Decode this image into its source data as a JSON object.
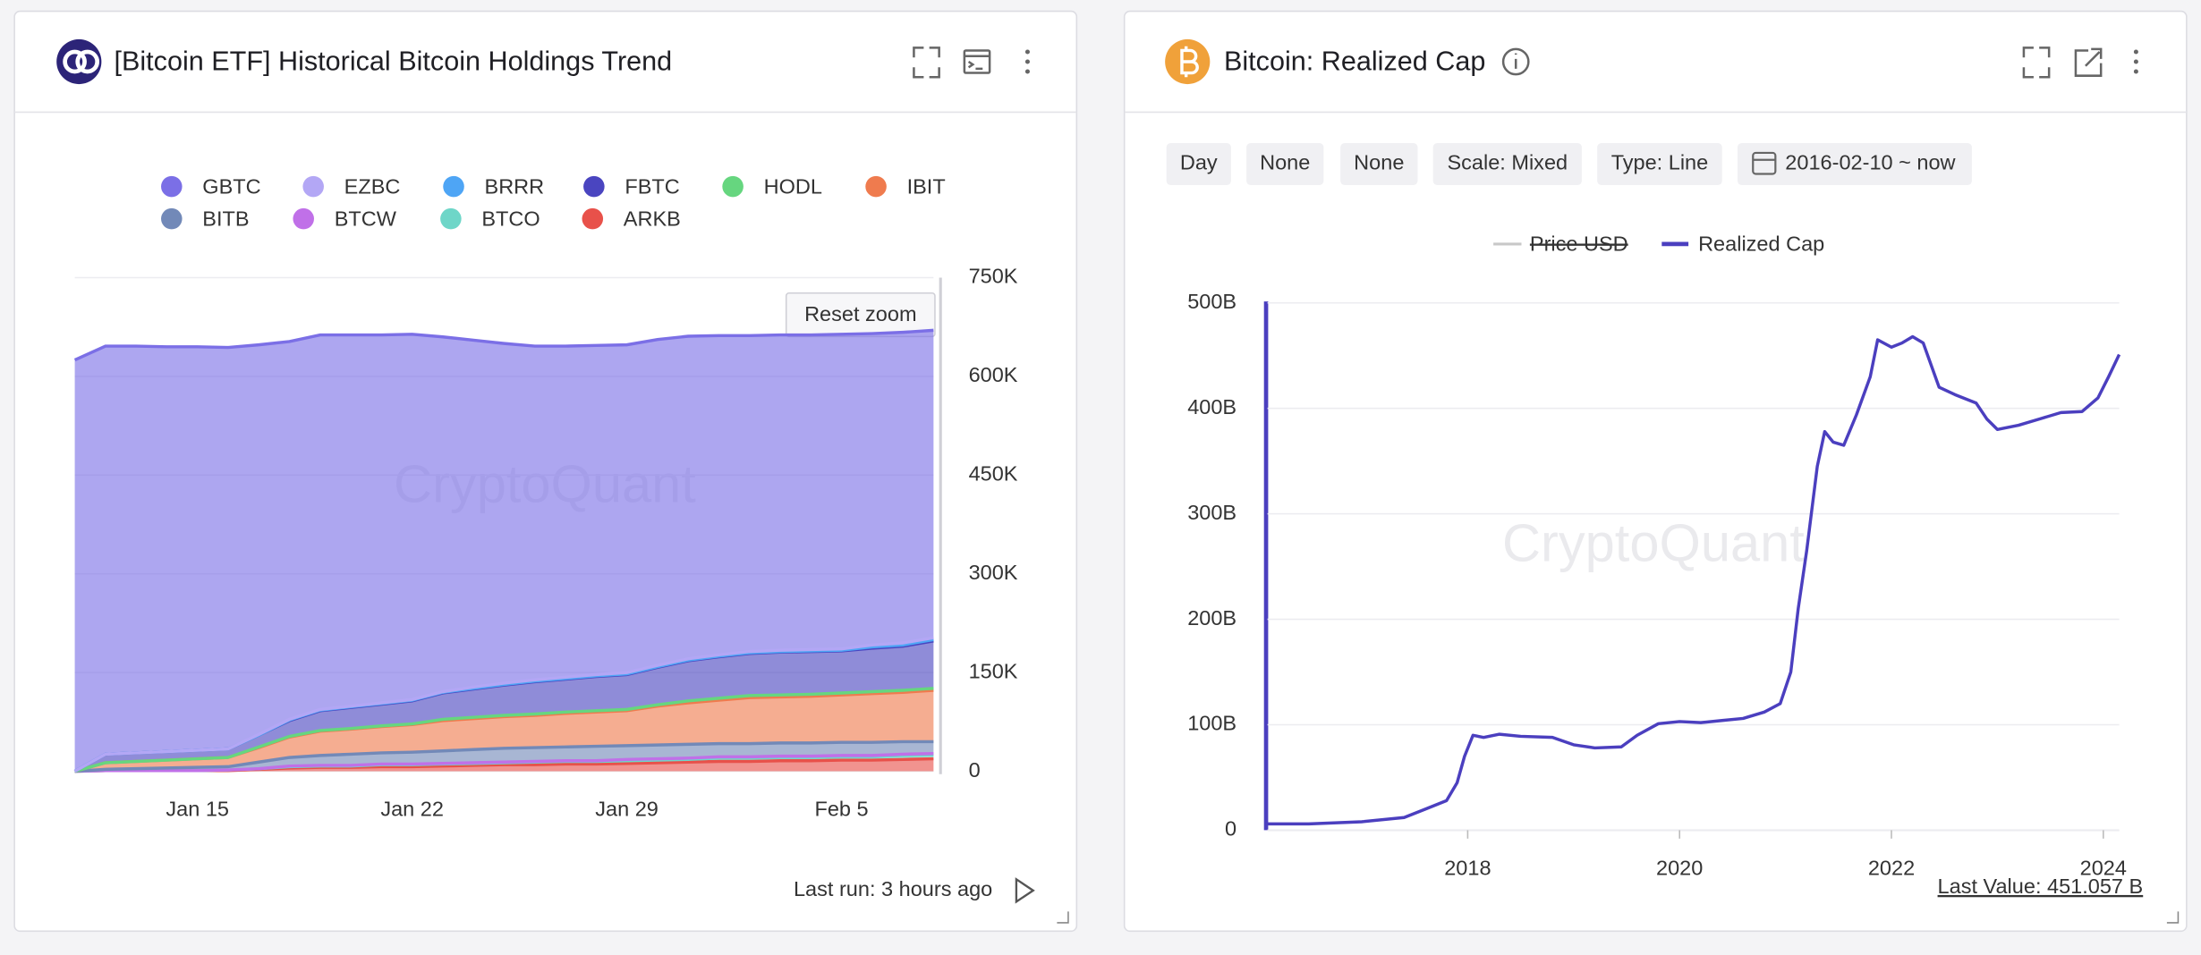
{
  "panels": [
    {
      "title": "[Bitcoin ETF] Historical Bitcoin Holdings Trend",
      "reset_zoom": "Reset zoom",
      "footer": "Last run: 3 hours ago"
    },
    {
      "title": "Bitcoin: Realized Cap",
      "controls": [
        "Day",
        "None",
        "None",
        "Scale: Mixed",
        "Type: Line",
        "2016-02-10 ~ now"
      ],
      "hidden_legend": [
        {
          "name": "Price USD",
          "color": "#c8c8c8"
        }
      ],
      "footer": "Last Value: 451.057 B"
    }
  ],
  "chart_data": [
    {
      "type": "stacked_area",
      "watermark": "CryptoQuant",
      "grid": true,
      "categories": [
        null,
        null,
        null,
        null,
        "Jan 15",
        null,
        null,
        null,
        null,
        null,
        null,
        "Jan 22",
        null,
        null,
        null,
        null,
        null,
        null,
        "Jan 29",
        null,
        null,
        null,
        null,
        null,
        null,
        "Feb 5",
        null,
        null,
        null
      ],
      "ylim": [
        0,
        750000
      ],
      "yticks": [
        0,
        {
          "value": 150000,
          "label": "150K"
        },
        {
          "value": 300000,
          "label": "300K"
        },
        {
          "value": 450000,
          "label": "450K"
        },
        {
          "value": 600000,
          "label": "600K"
        },
        {
          "value": 750000,
          "label": "750K"
        }
      ],
      "series": [
        {
          "name": "GBTC",
          "color": "#7b6fe6",
          "values": [
            625000,
            620000,
            618000,
            615000,
            613000,
            610000,
            592000,
            574000,
            569000,
            564000,
            559000,
            555000,
            539000,
            527000,
            516000,
            507000,
            503000,
            500000,
            498000,
            495000,
            490000,
            485000,
            480000,
            479000,
            478000,
            478000,
            473000,
            472000,
            467000
          ]
        },
        {
          "name": "EZBC",
          "color": "#b3a7f5",
          "values": [
            0,
            0,
            0,
            0,
            0,
            0,
            1000,
            1000,
            1000,
            1000,
            1000,
            1000,
            1000,
            2000,
            2000,
            2000,
            2000,
            2000,
            2000,
            2000,
            2000,
            2000,
            2000,
            2000,
            2000,
            2000,
            3000,
            3000,
            3000
          ]
        },
        {
          "name": "BRRR",
          "color": "#4ea5f5",
          "values": [
            0,
            0,
            0,
            0,
            0,
            0,
            0,
            1000,
            1000,
            1000,
            1000,
            1000,
            1000,
            1000,
            1000,
            1000,
            1000,
            1000,
            1000,
            1000,
            1000,
            1000,
            1000,
            1000,
            1000,
            1000,
            2000,
            2000,
            2000
          ]
        },
        {
          "name": "FBTC",
          "color": "#4a45c0",
          "values": [
            0,
            13000,
            13000,
            13000,
            13000,
            13000,
            18000,
            24000,
            30000,
            32000,
            33000,
            35000,
            40000,
            43000,
            46000,
            49000,
            50000,
            52000,
            53000,
            57000,
            61000,
            63000,
            64000,
            65000,
            65000,
            64000,
            66000,
            67000,
            72000
          ]
        },
        {
          "name": "HODL",
          "color": "#66d67f",
          "values": [
            0,
            0,
            0,
            0,
            0,
            0,
            1000,
            1000,
            1000,
            1000,
            1000,
            1000,
            2000,
            2000,
            2000,
            2000,
            2000,
            2000,
            2000,
            2000,
            3000,
            3000,
            3000,
            3000,
            3000,
            3000,
            3000,
            3000,
            3000
          ]
        },
        {
          "name": "IBIT",
          "color": "#ef7b4e",
          "values": [
            0,
            10000,
            11000,
            12000,
            13000,
            14000,
            22000,
            31000,
            37000,
            38000,
            40000,
            42000,
            46000,
            47000,
            48000,
            49000,
            51000,
            52000,
            53000,
            59000,
            63000,
            66000,
            70000,
            70000,
            71000,
            72000,
            74000,
            75000,
            78000
          ]
        },
        {
          "name": "BITB",
          "color": "#7289b8",
          "values": [
            0,
            2000,
            3000,
            4000,
            5000,
            5000,
            10000,
            13000,
            15000,
            17000,
            17000,
            18000,
            19000,
            20000,
            21000,
            21000,
            21000,
            22000,
            21000,
            21000,
            21000,
            20000,
            20000,
            20000,
            20000,
            20000,
            20000,
            19000,
            18000
          ]
        },
        {
          "name": "BTCW",
          "color": "#c070e8",
          "values": [
            0,
            0,
            0,
            0,
            0,
            0,
            0,
            1000,
            1000,
            1000,
            1000,
            1000,
            1000,
            1000,
            1000,
            1000,
            1000,
            1000,
            2000,
            2000,
            2000,
            2000,
            2000,
            2000,
            2000,
            2000,
            2000,
            2000,
            2000
          ]
        },
        {
          "name": "BTCO",
          "color": "#6ed6c8",
          "values": [
            0,
            0,
            0,
            0,
            0,
            1000,
            1000,
            2000,
            2000,
            2000,
            3000,
            3000,
            3000,
            3000,
            3000,
            4000,
            4000,
            4000,
            4000,
            4000,
            4000,
            5000,
            5000,
            5000,
            5000,
            5000,
            5000,
            6000,
            6000
          ]
        },
        {
          "name": "ARKB",
          "color": "#e8514a",
          "values": [
            0,
            1000,
            1000,
            1000,
            1000,
            1000,
            3000,
            5000,
            6000,
            6000,
            7000,
            7000,
            8000,
            9000,
            10000,
            10000,
            11000,
            11000,
            12000,
            13000,
            14000,
            15000,
            15000,
            16000,
            16000,
            17000,
            17000,
            18000,
            19000
          ]
        }
      ]
    },
    {
      "type": "line",
      "watermark": "CryptoQuant",
      "grid": true,
      "x": [
        2016.11,
        2016.5,
        2017.0,
        2017.4,
        2017.6,
        2017.8,
        2017.9,
        2017.97,
        2018.05,
        2018.15,
        2018.3,
        2018.5,
        2018.8,
        2019.0,
        2019.2,
        2019.45,
        2019.6,
        2019.8,
        2020.0,
        2020.2,
        2020.4,
        2020.6,
        2020.8,
        2020.95,
        2021.05,
        2021.12,
        2021.2,
        2021.3,
        2021.37,
        2021.45,
        2021.55,
        2021.67,
        2021.8,
        2021.87,
        2022.0,
        2022.1,
        2022.2,
        2022.3,
        2022.45,
        2022.6,
        2022.8,
        2022.9,
        2023.0,
        2023.2,
        2023.4,
        2023.6,
        2023.8,
        2023.95,
        2024.05,
        2024.15
      ],
      "xlim": [
        2016.11,
        2024.15
      ],
      "xticks": [
        2018,
        2020,
        2022,
        2024
      ],
      "ylim": [
        0,
        500000000000.0
      ],
      "yticks": [
        0,
        {
          "value": 100000000000.0,
          "label": "100B"
        },
        {
          "value": 200000000000.0,
          "label": "200B"
        },
        {
          "value": 300000000000.0,
          "label": "300B"
        },
        {
          "value": 400000000000.0,
          "label": "400B"
        },
        {
          "value": 500000000000.0,
          "label": "500B"
        }
      ],
      "series": [
        {
          "name": "Realized Cap",
          "color": "#4b3fbf",
          "values": [
            6000000000.0,
            6000000000.0,
            8000000000.0,
            12000000000.0,
            20000000000.0,
            28000000000.0,
            45000000000.0,
            70000000000.0,
            90000000000.0,
            88000000000.0,
            91000000000.0,
            89000000000.0,
            88000000000.0,
            81000000000.0,
            78000000000.0,
            79000000000.0,
            90000000000.0,
            101000000000.0,
            103000000000.0,
            102000000000.0,
            104000000000.0,
            106000000000.0,
            112000000000.0,
            120000000000.0,
            150000000000.0,
            210000000000.0,
            265000000000.0,
            345000000000.0,
            378000000000.0,
            368000000000.0,
            365000000000.0,
            394000000000.0,
            430000000000.0,
            465000000000.0,
            458000000000.0,
            462000000000.0,
            468000000000.0,
            462000000000.0,
            420000000000.0,
            413000000000.0,
            405000000000.0,
            390000000000.0,
            380000000000.0,
            384000000000.0,
            390000000000.0,
            396000000000.0,
            397000000000.0,
            410000000000.0,
            430000000000.0,
            451057000000.0
          ]
        }
      ]
    }
  ]
}
